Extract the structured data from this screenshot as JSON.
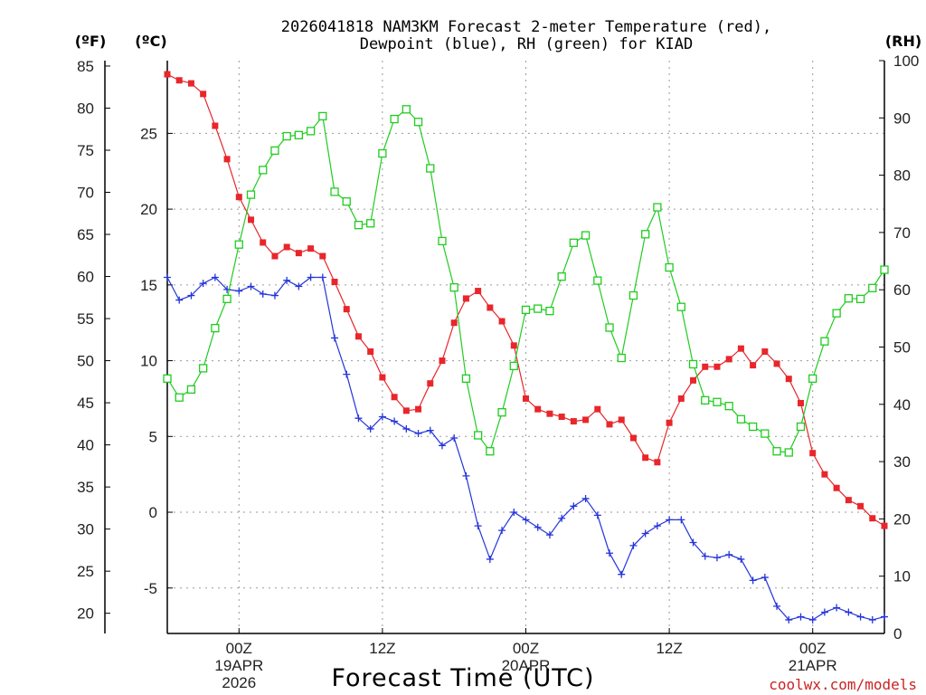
{
  "chart_data": {
    "type": "line",
    "title": "2026041818 NAM3KM Forecast 2-meter Temperature (red),",
    "subtitle": "Dewpoint (blue), RH (green) for KIAD",
    "xlabel": "Forecast Time (UTC)",
    "credit": "coolwx.com/models",
    "units": {
      "f": "(ºF)",
      "c": "(ºC)",
      "rh": "(RH)"
    },
    "x_range_hours": [
      0,
      60
    ],
    "c_range": [
      -8,
      29.8
    ],
    "f_range": [
      17.6,
      85.64
    ],
    "rh_range": [
      0,
      100
    ],
    "c_ticks": [
      "25",
      "20",
      "15",
      "10",
      "5",
      "0",
      "-5"
    ],
    "f_ticks": [
      "85",
      "80",
      "75",
      "70",
      "65",
      "60",
      "55",
      "50",
      "45",
      "40",
      "35",
      "30",
      "25",
      "20"
    ],
    "rh_ticks": [
      "100",
      "90",
      "80",
      "70",
      "60",
      "50",
      "40",
      "30",
      "20",
      "10",
      "0"
    ],
    "x_ticks": [
      {
        "hour": 6,
        "label": "00Z",
        "sub1": "19APR",
        "sub2": "2026"
      },
      {
        "hour": 18,
        "label": "12Z",
        "sub1": "",
        "sub2": ""
      },
      {
        "hour": 30,
        "label": "00Z",
        "sub1": "20APR",
        "sub2": ""
      },
      {
        "hour": 42,
        "label": "12Z",
        "sub1": "",
        "sub2": ""
      },
      {
        "hour": 54,
        "label": "00Z",
        "sub1": "21APR",
        "sub2": ""
      }
    ],
    "series": [
      {
        "name": "2-meter Temperature",
        "unit": "C",
        "color": "#e8262b",
        "marker": "filled-square",
        "values": [
          28.9,
          28.5,
          28.3,
          27.6,
          25.5,
          23.3,
          20.8,
          19.3,
          17.8,
          16.9,
          17.5,
          17.1,
          17.4,
          16.9,
          15.2,
          13.4,
          11.6,
          10.6,
          8.9,
          7.6,
          6.7,
          6.8,
          8.5,
          10.0,
          12.5,
          14.1,
          14.6,
          13.5,
          12.6,
          11.0,
          7.5,
          6.8,
          6.5,
          6.3,
          6.0,
          6.1,
          6.8,
          5.8,
          6.1,
          4.9,
          3.6,
          3.3,
          5.9,
          7.5,
          8.7,
          9.6,
          9.6,
          10.1,
          10.8,
          9.7,
          10.6,
          9.8,
          8.8,
          7.2,
          3.9,
          2.5,
          1.6,
          0.8,
          0.4,
          -0.4,
          -0.9
        ]
      },
      {
        "name": "Dewpoint",
        "unit": "C",
        "color": "#2535d8",
        "marker": "plus",
        "values": [
          15.5,
          14.0,
          14.3,
          15.1,
          15.5,
          14.7,
          14.6,
          14.9,
          14.4,
          14.3,
          15.3,
          14.9,
          15.5,
          15.5,
          11.5,
          9.1,
          6.2,
          5.5,
          6.3,
          6.0,
          5.5,
          5.2,
          5.4,
          4.4,
          4.9,
          2.4,
          -0.9,
          -3.1,
          -1.2,
          0.0,
          -0.5,
          -1.0,
          -1.5,
          -0.4,
          0.4,
          0.9,
          -0.2,
          -2.7,
          -4.1,
          -2.2,
          -1.4,
          -0.9,
          -0.5,
          -0.5,
          -2.0,
          -2.9,
          -3.0,
          -2.8,
          -3.1,
          -4.5,
          -4.3,
          -6.2,
          -7.1,
          -6.9,
          -7.1,
          -6.6,
          -6.3,
          -6.6,
          -6.9,
          -7.1,
          -6.9
        ]
      },
      {
        "name": "RH",
        "unit": "%",
        "color": "#20cc20",
        "marker": "open-square",
        "values": [
          44.5,
          41.2,
          42.6,
          46.3,
          53.3,
          58.4,
          67.9,
          76.6,
          80.9,
          84.3,
          86.8,
          87.0,
          87.7,
          90.3,
          77.1,
          75.4,
          71.3,
          71.6,
          83.8,
          89.8,
          91.5,
          89.3,
          81.2,
          68.5,
          60.4,
          44.5,
          34.6,
          31.8,
          38.6,
          46.7,
          56.5,
          56.7,
          56.3,
          62.3,
          68.2,
          69.5,
          61.6,
          53.4,
          48.1,
          59.0,
          69.7,
          74.4,
          63.9,
          57.0,
          47.0,
          40.7,
          40.4,
          39.7,
          37.4,
          36.1,
          34.9,
          31.8,
          31.6,
          36.1,
          44.5,
          51.0,
          55.9,
          58.5,
          58.4,
          60.3,
          63.5
        ]
      }
    ]
  }
}
